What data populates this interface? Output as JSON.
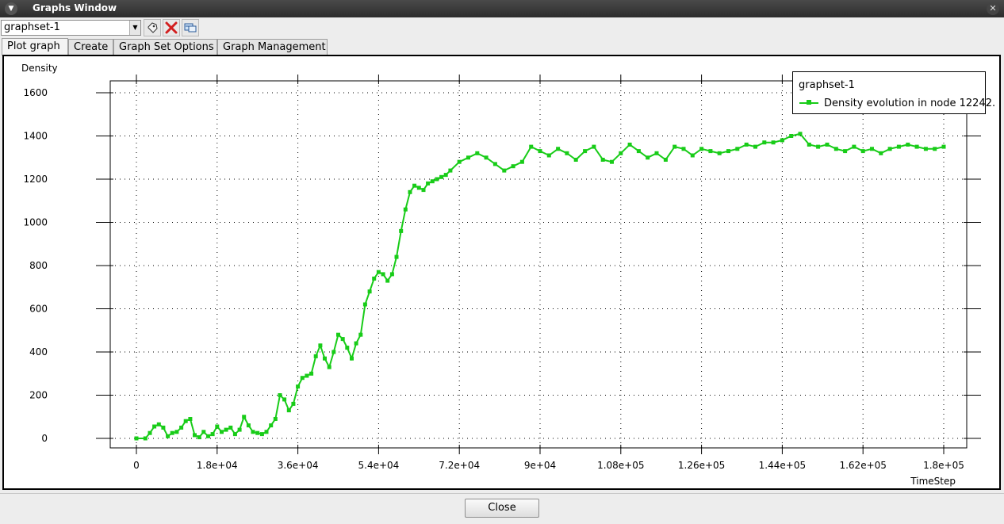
{
  "window": {
    "title": "Graphs Window"
  },
  "toolbar": {
    "graphset_value": "graphset-1"
  },
  "tabs": [
    "Plot graph",
    "Create",
    "Graph Set Options",
    "Graph Management"
  ],
  "legend": {
    "title": "graphset-1",
    "series_label": "Density evolution in node 12242."
  },
  "footer": {
    "close_label": "Close"
  },
  "colors": {
    "series": "#18cc18",
    "titlebar": "#3a3a3a"
  },
  "chart_data": {
    "type": "line",
    "ylabel": "Density",
    "xlabel": "TimeStep",
    "xlim": [
      0,
      180000
    ],
    "ylim": [
      0,
      1600
    ],
    "x_ticks": [
      0,
      18000,
      36000,
      54000,
      72000,
      90000,
      108000,
      126000,
      144000,
      162000,
      180000
    ],
    "x_tick_labels": [
      "0",
      "1.8e+04",
      "3.6e+04",
      "5.4e+04",
      "7.2e+04",
      "9e+04",
      "1.08e+05",
      "1.26e+05",
      "1.44e+05",
      "1.62e+05",
      "1.8e+05"
    ],
    "y_ticks": [
      0,
      200,
      400,
      600,
      800,
      1000,
      1200,
      1400,
      1600
    ],
    "y_tick_labels": [
      "0",
      "200",
      "400",
      "600",
      "800",
      "1000",
      "1200",
      "1400",
      "1600"
    ],
    "grid": true,
    "legend_position": "top-right",
    "series": [
      {
        "name": "Density evolution in node 12242.",
        "x": [
          0,
          2000,
          3000,
          4000,
          5000,
          6000,
          7000,
          8000,
          9000,
          10000,
          11000,
          12000,
          13000,
          14000,
          15000,
          16000,
          17000,
          18000,
          19000,
          20000,
          21000,
          22000,
          23000,
          24000,
          25000,
          26000,
          27000,
          28000,
          29000,
          30000,
          31000,
          32000,
          33000,
          34000,
          35000,
          36000,
          37000,
          38000,
          39000,
          40000,
          41000,
          42000,
          43000,
          44000,
          45000,
          46000,
          47000,
          48000,
          49000,
          50000,
          51000,
          52000,
          53000,
          54000,
          55000,
          56000,
          57000,
          58000,
          59000,
          60000,
          61000,
          62000,
          63000,
          64000,
          65000,
          66000,
          67000,
          68000,
          69000,
          70000,
          72000,
          74000,
          76000,
          78000,
          80000,
          82000,
          84000,
          86000,
          88000,
          90000,
          92000,
          94000,
          96000,
          98000,
          100000,
          102000,
          104000,
          106000,
          108000,
          110000,
          112000,
          114000,
          116000,
          118000,
          120000,
          122000,
          124000,
          126000,
          128000,
          130000,
          132000,
          134000,
          136000,
          138000,
          140000,
          142000,
          144000,
          146000,
          148000,
          150000,
          152000,
          154000,
          156000,
          158000,
          160000,
          162000,
          164000,
          166000,
          168000,
          170000,
          172000,
          174000,
          176000,
          178000,
          180000
        ],
        "y": [
          0,
          0,
          25,
          55,
          65,
          50,
          10,
          25,
          30,
          50,
          80,
          90,
          15,
          5,
          30,
          10,
          20,
          55,
          30,
          40,
          50,
          20,
          40,
          100,
          60,
          30,
          25,
          20,
          30,
          60,
          90,
          200,
          180,
          130,
          160,
          240,
          280,
          290,
          300,
          380,
          430,
          370,
          330,
          400,
          480,
          460,
          420,
          370,
          440,
          480,
          620,
          680,
          740,
          770,
          760,
          730,
          760,
          840,
          960,
          1060,
          1140,
          1170,
          1160,
          1150,
          1180,
          1190,
          1200,
          1210,
          1220,
          1240,
          1280,
          1300,
          1320,
          1300,
          1270,
          1240,
          1260,
          1280,
          1350,
          1330,
          1310,
          1340,
          1320,
          1290,
          1330,
          1350,
          1290,
          1280,
          1320,
          1360,
          1330,
          1300,
          1320,
          1290,
          1350,
          1340,
          1310,
          1340,
          1330,
          1320,
          1330,
          1340,
          1360,
          1350,
          1370,
          1370,
          1380,
          1400,
          1410,
          1360,
          1350,
          1360,
          1340,
          1330,
          1350,
          1330,
          1340,
          1320,
          1340,
          1350,
          1360,
          1350,
          1340,
          1340,
          1350
        ]
      }
    ]
  }
}
